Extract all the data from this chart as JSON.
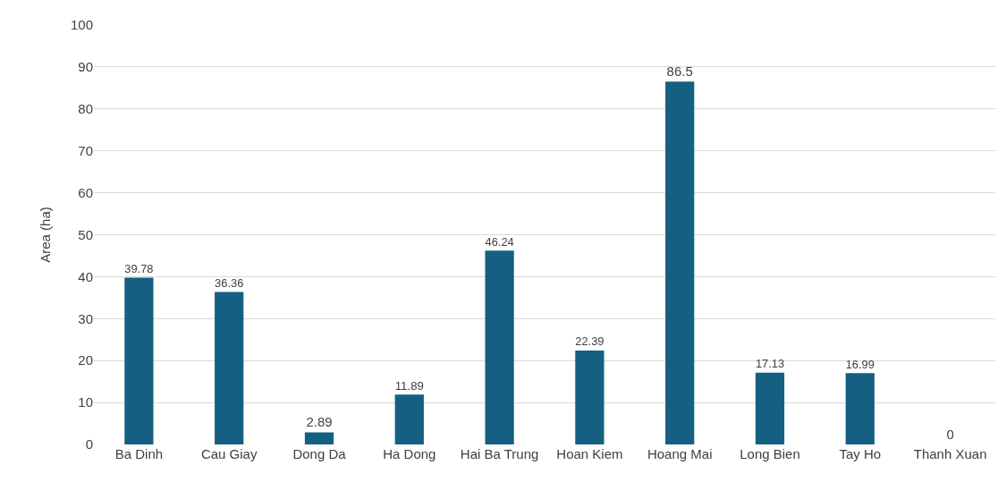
{
  "chart_data": {
    "type": "bar",
    "ylabel": "Area (ha)",
    "categories": [
      "Ba Dinh",
      "Cau Giay",
      "Dong Da",
      "Ha Dong",
      "Hai Ba Trung",
      "Hoan Kiem",
      "Hoang Mai",
      "Long Bien",
      "Tay Ho",
      "Thanh Xuan"
    ],
    "values": [
      39.78,
      36.36,
      2.89,
      11.89,
      46.24,
      22.39,
      86.5,
      17.13,
      16.99,
      0
    ],
    "color": "#156082",
    "ylim": [
      0,
      100
    ],
    "yticks": [
      0,
      10,
      20,
      30,
      40,
      50,
      60,
      70,
      80,
      90,
      100
    ],
    "grid": "y",
    "data_labels": true,
    "legend": false
  }
}
